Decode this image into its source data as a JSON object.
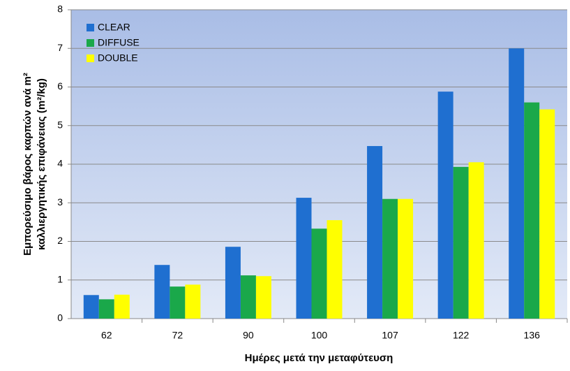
{
  "chart_data": {
    "type": "bar",
    "xlabel": "Ημέρες μετά την μεταφύτευση",
    "ylabel": [
      "Εμπορεύσιμο βάρος καρπών ανά m²",
      "καλλιεργητικής επιφάνειας  (m²/kg)"
    ],
    "categories": [
      "62",
      "72",
      "90",
      "100",
      "107",
      "122",
      "136"
    ],
    "series": [
      {
        "name": "CLEAR",
        "color": "#1f6fd0",
        "values": [
          0.61,
          1.39,
          1.86,
          3.13,
          4.47,
          5.88,
          7.0
        ]
      },
      {
        "name": "DIFFUSE",
        "color": "#1aa84a",
        "values": [
          0.5,
          0.83,
          1.12,
          2.33,
          3.1,
          3.93,
          5.6
        ]
      },
      {
        "name": "DOUBLE",
        "color": "#ffff00",
        "values": [
          0.62,
          0.88,
          1.1,
          2.55,
          3.1,
          4.05,
          5.42
        ]
      }
    ],
    "ylim": [
      0,
      8
    ],
    "yticks": [
      0,
      1,
      2,
      3,
      4,
      5,
      6,
      7,
      8
    ],
    "grid": true,
    "legend": "upper-left"
  }
}
